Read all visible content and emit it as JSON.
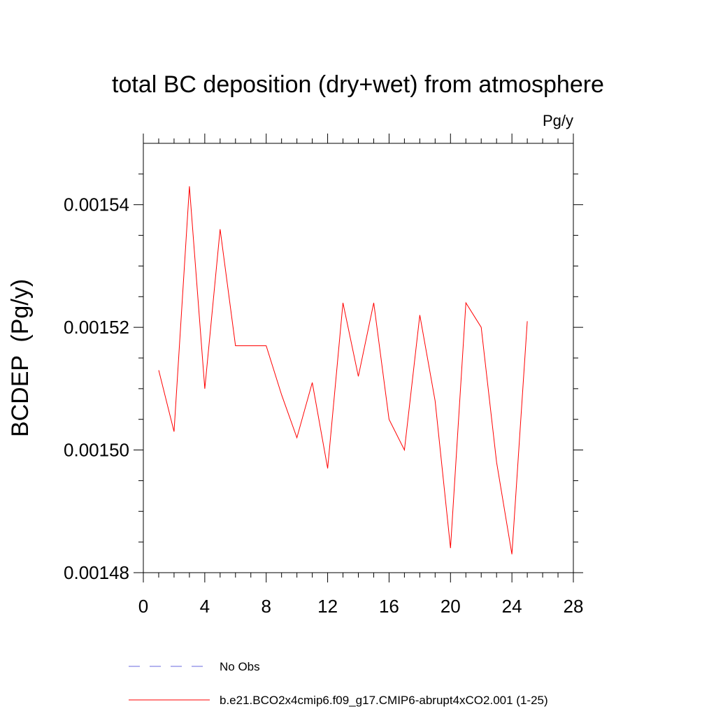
{
  "chart_data": {
    "type": "line",
    "title": "total BC deposition (dry+wet) from atmosphere",
    "units_label": "Pg/y",
    "ylabel": "BCDEP  (Pg/y)",
    "xlabel": "",
    "xlim": [
      0,
      28
    ],
    "ylim": [
      0.00148,
      0.00155
    ],
    "x_ticks": [
      0,
      4,
      8,
      12,
      16,
      20,
      24,
      28
    ],
    "x_tick_labels": [
      "0",
      "4",
      "8",
      "12",
      "16",
      "20",
      "24",
      "28"
    ],
    "y_ticks": [
      0.00148,
      0.0015,
      0.00152,
      0.00154
    ],
    "y_tick_labels": [
      "0.00148",
      "0.00150",
      "0.00152",
      "0.00154"
    ],
    "y_minor_step": 5e-06,
    "grid": false,
    "series": [
      {
        "name": "b.e21.BCO2x4cmip6.f09_g17.CMIP6-abrupt4xCO2.001 (1-25)",
        "color": "#ff0000",
        "x": [
          1,
          2,
          3,
          4,
          5,
          6,
          7,
          8,
          9,
          10,
          11,
          12,
          13,
          14,
          15,
          16,
          17,
          18,
          19,
          20,
          21,
          22,
          23,
          24,
          25
        ],
        "y": [
          0.001513,
          0.001503,
          0.001543,
          0.00151,
          0.001536,
          0.001517,
          0.001517,
          0.001517,
          0.001509,
          0.001502,
          0.001511,
          0.001497,
          0.001524,
          0.001512,
          0.001524,
          0.001505,
          0.0015,
          0.001522,
          0.001508,
          0.001484,
          0.001524,
          0.00152,
          0.001498,
          0.001483,
          0.001521
        ]
      }
    ],
    "legend": {
      "placement": "bottom",
      "entries": [
        {
          "label": "No Obs",
          "color": "#6a6adf",
          "style": "dashed"
        },
        {
          "label": "b.e21.BCO2x4cmip6.f09_g17.CMIP6-abrupt4xCO2.001 (1-25)",
          "color": "#ff0000",
          "style": "solid"
        }
      ]
    }
  }
}
